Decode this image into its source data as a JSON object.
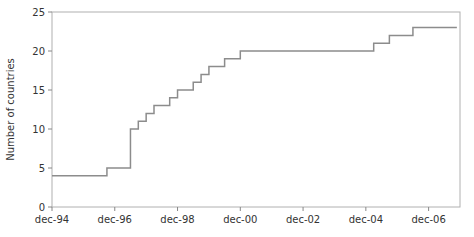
{
  "chart_data": {
    "type": "step",
    "x": [
      1994.0,
      1995.75,
      1996.5,
      1996.75,
      1997.0,
      1997.25,
      1997.5,
      1997.75,
      1998.0,
      1998.25,
      1998.5,
      1998.75,
      1999.0,
      1999.25,
      1999.5,
      2000.0,
      2000.25,
      2000.75,
      2001.75,
      2003.75,
      2004.25,
      2004.75,
      2005.5,
      2006.9
    ],
    "values": [
      4,
      5,
      10,
      11,
      12,
      13,
      13,
      14,
      15,
      15,
      16,
      17,
      18,
      18,
      19,
      20,
      20,
      20,
      20,
      20,
      21,
      22,
      23,
      23
    ],
    "color": "#8c8c8c",
    "xlim": [
      1994.0,
      2007.0
    ],
    "xticks": [
      {
        "value": 1994,
        "label": "dec-94"
      },
      {
        "value": 1996,
        "label": "dec-96"
      },
      {
        "value": 1998,
        "label": "dec-98"
      },
      {
        "value": 2000,
        "label": "dec-00"
      },
      {
        "value": 2002,
        "label": "dec-02"
      },
      {
        "value": 2004,
        "label": "dec-04"
      },
      {
        "value": 2006,
        "label": "dec-06"
      }
    ],
    "ylim": [
      0,
      25
    ],
    "yticks": [
      0,
      5,
      10,
      15,
      20,
      25
    ],
    "y_label": "Number of countries",
    "grid": false
  }
}
